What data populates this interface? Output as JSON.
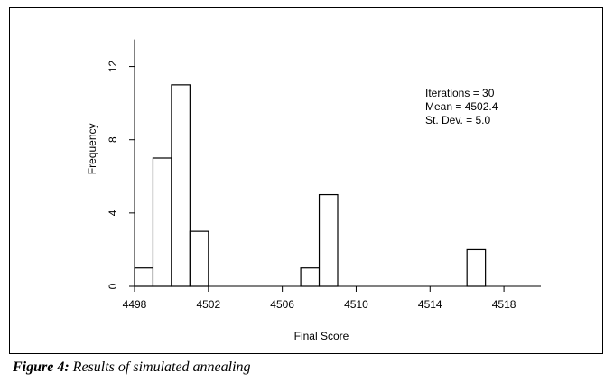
{
  "chart_data": {
    "type": "bar",
    "histogram": true,
    "xlabel": "Final Score",
    "ylabel": "Frequency",
    "bin_width": 1,
    "bins": [
      {
        "start": 4498,
        "end": 4499,
        "value": 1
      },
      {
        "start": 4499,
        "end": 4500,
        "value": 7
      },
      {
        "start": 4500,
        "end": 4501,
        "value": 11
      },
      {
        "start": 4501,
        "end": 4502,
        "value": 3
      },
      {
        "start": 4507,
        "end": 4508,
        "value": 1
      },
      {
        "start": 4508,
        "end": 4509,
        "value": 5
      },
      {
        "start": 4516,
        "end": 4517,
        "value": 2
      }
    ],
    "xlim": [
      4498,
      4520
    ],
    "ylim": [
      0,
      14
    ],
    "x_ticks": [
      4498,
      4502,
      4506,
      4510,
      4514,
      4518
    ],
    "y_ticks": [
      0,
      4,
      8,
      12
    ],
    "annotations": [
      "Iterations = 30",
      "Mean = 4502.4",
      "St. Dev. = 5.0"
    ],
    "grid": false
  },
  "caption": {
    "label": "Figure 4:",
    "text": "Results of simulated annealing"
  }
}
